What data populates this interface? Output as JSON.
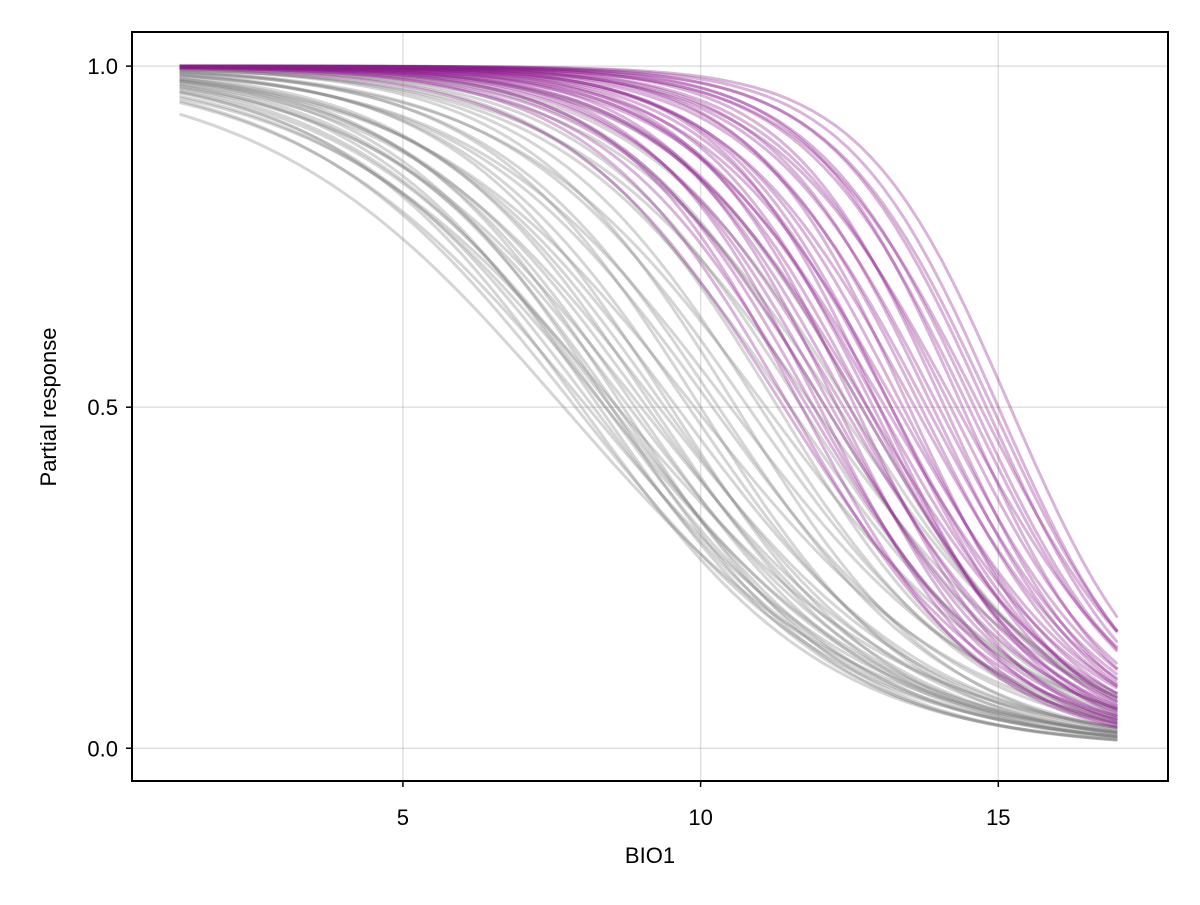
{
  "chart_data": {
    "type": "line",
    "title": "",
    "xlabel": "BIO1",
    "ylabel": "Partial response",
    "xlim": [
      0.45,
      17.85
    ],
    "ylim": [
      -0.048,
      1.05
    ],
    "x_range_of_curves": [
      1.25,
      17
    ],
    "x_ticks": [
      5,
      10,
      15
    ],
    "x_tick_labels": [
      "5",
      "10",
      "15"
    ],
    "y_ticks": [
      0,
      0.5,
      1
    ],
    "y_tick_labels": [
      "0.0",
      "0.5",
      "1.0"
    ],
    "grid": true,
    "legend": "none",
    "curve_form": "logistic decreasing: y = 1/(1+exp(k*(x-m)))",
    "series": [
      {
        "color": "#808080",
        "opacity": 0.15,
        "midpoints": [
          7.7,
          7.9,
          8.0,
          8.1,
          8.2,
          8.3,
          8.4,
          8.4,
          8.5,
          8.5,
          8.6,
          8.6,
          8.7,
          8.8,
          8.9,
          9.0,
          9.1,
          9.2,
          9.3,
          9.4,
          9.5,
          9.6,
          9.8,
          9.9,
          10.0,
          10.2,
          10.3,
          10.5,
          10.6,
          10.8,
          11.0,
          11.1,
          11.3,
          11.5,
          11.7,
          11.9,
          12.1,
          12.3,
          12.5,
          12.7
        ],
        "steepness": [
          0.4,
          0.44,
          0.48,
          0.42,
          0.46,
          0.5,
          0.43,
          0.47,
          0.52,
          0.45,
          0.49,
          0.41,
          0.53,
          0.46,
          0.5,
          0.44,
          0.48,
          0.52,
          0.45,
          0.49,
          0.54,
          0.47,
          0.51,
          0.44,
          0.55,
          0.48,
          0.52,
          0.46,
          0.56,
          0.5,
          0.54,
          0.47,
          0.57,
          0.51,
          0.55,
          0.49,
          0.58,
          0.52,
          0.56,
          0.6
        ]
      },
      {
        "color": "#8b1a8b",
        "opacity": 0.15,
        "midpoints": [
          11.4,
          11.5,
          11.7,
          11.8,
          11.9,
          12.0,
          12.1,
          12.2,
          12.3,
          12.4,
          12.5,
          12.6,
          12.7,
          12.8,
          12.8,
          12.9,
          13.0,
          13.0,
          13.1,
          13.2,
          13.2,
          13.3,
          13.4,
          13.5,
          13.6,
          13.7,
          13.8,
          13.9,
          14.0,
          14.1,
          14.2,
          14.3,
          14.4,
          14.5,
          14.6,
          14.7,
          14.8,
          14.9,
          15.0,
          15.2
        ],
        "steepness": [
          0.55,
          0.6,
          0.65,
          0.58,
          0.62,
          0.68,
          0.57,
          0.63,
          0.7,
          0.59,
          0.64,
          0.72,
          0.61,
          0.66,
          0.58,
          0.69,
          0.63,
          0.74,
          0.6,
          0.67,
          0.71,
          0.62,
          0.68,
          0.75,
          0.64,
          0.7,
          0.66,
          0.73,
          0.68,
          0.76,
          0.7,
          0.65,
          0.78,
          0.72,
          0.74,
          0.69,
          0.77,
          0.75,
          0.79,
          0.8
        ]
      }
    ]
  }
}
